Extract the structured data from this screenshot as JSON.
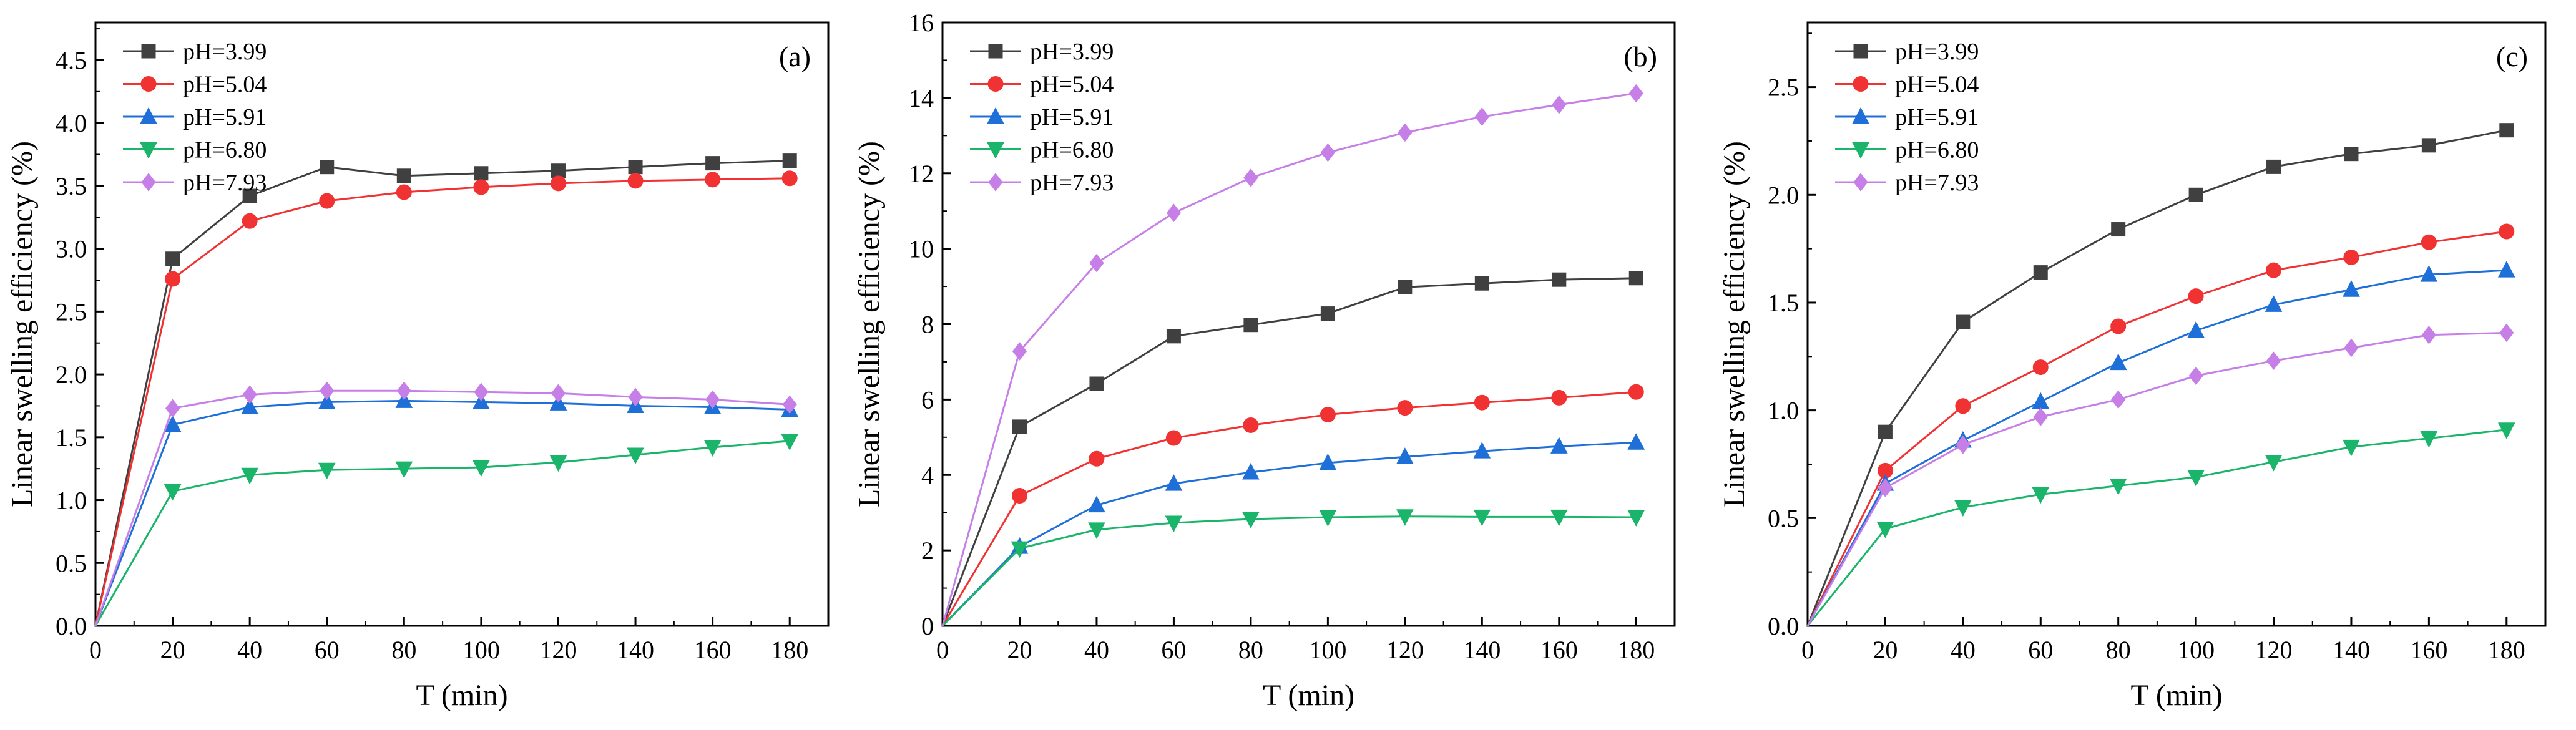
{
  "chart_data": [
    {
      "type": "line",
      "panel_label": "(a)",
      "xlabel": "T (min)",
      "ylabel": "Linear swelling efficiency (%)",
      "xlim": [
        0,
        190
      ],
      "ylim": [
        0,
        4.8
      ],
      "x_ticks": [
        0,
        20,
        40,
        60,
        80,
        100,
        120,
        140,
        160,
        180
      ],
      "y_ticks": [
        0.0,
        0.5,
        1.0,
        1.5,
        2.0,
        2.5,
        3.0,
        3.5,
        4.0,
        4.5
      ],
      "y_tick_labels": [
        "0.0",
        "0.5",
        "1.0",
        "1.5",
        "2.0",
        "2.5",
        "3.0",
        "3.5",
        "4.0",
        "4.5"
      ],
      "x": [
        0,
        20,
        40,
        60,
        80,
        100,
        120,
        140,
        160,
        180
      ],
      "legend_position": "top-left",
      "grid": false,
      "series": [
        {
          "name": "pH=3.99",
          "color": "#404040",
          "marker": "square",
          "values": [
            0,
            2.92,
            3.42,
            3.65,
            3.58,
            3.6,
            3.62,
            3.65,
            3.68,
            3.7
          ]
        },
        {
          "name": "pH=5.04",
          "color": "#f03232",
          "marker": "circle",
          "values": [
            0,
            2.76,
            3.22,
            3.38,
            3.45,
            3.49,
            3.52,
            3.54,
            3.55,
            3.56
          ]
        },
        {
          "name": "pH=5.91",
          "color": "#1f6fd9",
          "marker": "triangle-up",
          "values": [
            0,
            1.6,
            1.74,
            1.78,
            1.79,
            1.78,
            1.77,
            1.75,
            1.74,
            1.72
          ]
        },
        {
          "name": "pH=6.80",
          "color": "#1ab56a",
          "marker": "triangle-down",
          "values": [
            0,
            1.07,
            1.2,
            1.24,
            1.25,
            1.26,
            1.3,
            1.36,
            1.42,
            1.47
          ]
        },
        {
          "name": "pH=7.93",
          "color": "#c77fe8",
          "marker": "diamond",
          "values": [
            0,
            1.73,
            1.84,
            1.87,
            1.87,
            1.86,
            1.85,
            1.82,
            1.8,
            1.76
          ]
        }
      ]
    },
    {
      "type": "line",
      "panel_label": "(b)",
      "xlabel": "T (min)",
      "ylabel": "Linear swelling efficiency (%)",
      "xlim": [
        0,
        190
      ],
      "ylim": [
        0,
        16
      ],
      "x_ticks": [
        0,
        20,
        40,
        60,
        80,
        100,
        120,
        140,
        160,
        180
      ],
      "y_ticks": [
        0,
        2,
        4,
        6,
        8,
        10,
        12,
        14,
        16
      ],
      "y_tick_labels": [
        "0",
        "2",
        "4",
        "6",
        "8",
        "10",
        "12",
        "14",
        "16"
      ],
      "x": [
        0,
        20,
        40,
        60,
        80,
        100,
        120,
        140,
        160,
        180
      ],
      "legend_position": "top-left",
      "grid": false,
      "series": [
        {
          "name": "pH=3.99",
          "color": "#404040",
          "marker": "square",
          "values": [
            0,
            5.28,
            6.42,
            7.68,
            7.98,
            8.28,
            8.98,
            9.08,
            9.18,
            9.22
          ]
        },
        {
          "name": "pH=5.04",
          "color": "#f03232",
          "marker": "circle",
          "values": [
            0,
            3.45,
            4.43,
            4.98,
            5.32,
            5.6,
            5.78,
            5.92,
            6.05,
            6.2
          ]
        },
        {
          "name": "pH=5.91",
          "color": "#1f6fd9",
          "marker": "triangle-up",
          "values": [
            0,
            2.1,
            3.2,
            3.77,
            4.07,
            4.32,
            4.48,
            4.63,
            4.76,
            4.86
          ]
        },
        {
          "name": "pH=6.80",
          "color": "#1ab56a",
          "marker": "triangle-down",
          "values": [
            0,
            2.05,
            2.55,
            2.73,
            2.83,
            2.88,
            2.9,
            2.89,
            2.89,
            2.88
          ]
        },
        {
          "name": "pH=7.93",
          "color": "#c77fe8",
          "marker": "diamond",
          "values": [
            0,
            7.28,
            9.62,
            10.95,
            11.88,
            12.55,
            13.08,
            13.5,
            13.82,
            14.12
          ]
        }
      ]
    },
    {
      "type": "line",
      "panel_label": "(c)",
      "xlabel": "T (min)",
      "ylabel": "Linear swelling efficiency (%)",
      "xlim": [
        0,
        190
      ],
      "ylim": [
        0,
        2.8
      ],
      "x_ticks": [
        0,
        20,
        40,
        60,
        80,
        100,
        120,
        140,
        160,
        180
      ],
      "y_ticks": [
        0.0,
        0.5,
        1.0,
        1.5,
        2.0,
        2.5
      ],
      "y_tick_labels": [
        "0.0",
        "0.5",
        "1.0",
        "1.5",
        "2.0",
        "2.5"
      ],
      "x": [
        0,
        20,
        40,
        60,
        80,
        100,
        120,
        140,
        160,
        180
      ],
      "legend_position": "top-left",
      "grid": false,
      "series": [
        {
          "name": "pH=3.99",
          "color": "#404040",
          "marker": "square",
          "values": [
            0,
            0.9,
            1.41,
            1.64,
            1.84,
            2.0,
            2.13,
            2.19,
            2.23,
            2.3
          ]
        },
        {
          "name": "pH=5.04",
          "color": "#f03232",
          "marker": "circle",
          "values": [
            0,
            0.72,
            1.02,
            1.2,
            1.39,
            1.53,
            1.65,
            1.71,
            1.78,
            1.83
          ]
        },
        {
          "name": "pH=5.91",
          "color": "#1f6fd9",
          "marker": "triangle-up",
          "values": [
            0,
            0.66,
            0.86,
            1.04,
            1.22,
            1.37,
            1.49,
            1.56,
            1.63,
            1.65
          ]
        },
        {
          "name": "pH=6.80",
          "color": "#1ab56a",
          "marker": "triangle-down",
          "values": [
            0,
            0.45,
            0.55,
            0.61,
            0.65,
            0.69,
            0.76,
            0.83,
            0.87,
            0.91
          ]
        },
        {
          "name": "pH=7.93",
          "color": "#c77fe8",
          "marker": "diamond",
          "values": [
            0,
            0.64,
            0.84,
            0.97,
            1.05,
            1.16,
            1.23,
            1.29,
            1.35,
            1.36
          ]
        }
      ]
    }
  ]
}
